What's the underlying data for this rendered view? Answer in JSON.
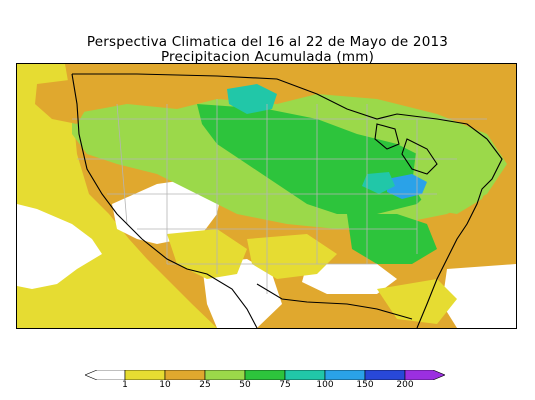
{
  "title_line1": "Perspectiva Climatica del 16 al 22 de Mayo de 2013",
  "title_line2": "Precipitacion Acumulada (mm)",
  "legend": {
    "ticks": [
      "1",
      "10",
      "25",
      "50",
      "75",
      "100",
      "150",
      "200"
    ],
    "colors": [
      "#ffffff",
      "#e6dc32",
      "#e0a82e",
      "#9bd94a",
      "#2dc43c",
      "#21c7a8",
      "#2aa2e8",
      "#2848d8",
      "#9b2fe0"
    ]
  },
  "colors": {
    "ocean": "#ffffff",
    "dry": "#ffffff",
    "light": "#e6dc32",
    "moderate": "#e0a82e",
    "green_light": "#9bd94a",
    "green": "#2dc43c",
    "teal": "#21c7a8",
    "blue": "#2aa2e8",
    "border": "#000000",
    "state_lines": "#b4b4b4"
  }
}
